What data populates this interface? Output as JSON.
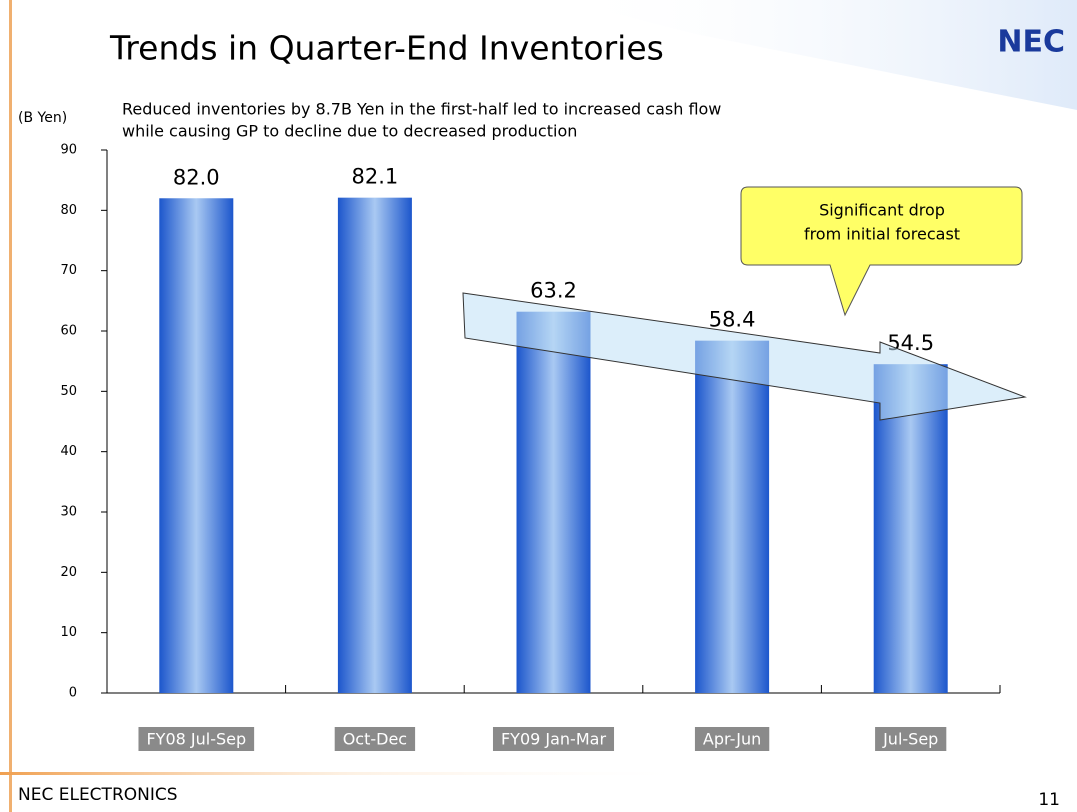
{
  "logo": "NEC",
  "footer": "NEC ELECTRONICS",
  "page_number": "11",
  "chart_data": {
    "type": "bar",
    "title": "Trends in Quarter-End Inventories",
    "subtitle": [
      "Reduced inventories by 8.7B Yen in the first-half led to increased cash flow",
      "while causing GP to decline due to decreased production"
    ],
    "y_axis_label": "(B Yen)",
    "annotation": [
      "Significant drop",
      "from initial forecast"
    ],
    "categories": [
      "FY08 Jul-Sep",
      "Oct-Dec",
      "FY09 Jan-Mar",
      "Apr-Jun",
      "Jul-Sep"
    ],
    "values": [
      82.0,
      82.1,
      63.2,
      58.4,
      54.5
    ],
    "value_labels": [
      "82.0",
      "82.1",
      "63.2",
      "58.4",
      "54.5"
    ],
    "color": "#1f5fd0",
    "ylim": [
      0,
      90
    ],
    "yticks": [
      0,
      10,
      20,
      30,
      40,
      50,
      60,
      70,
      80,
      90
    ]
  }
}
